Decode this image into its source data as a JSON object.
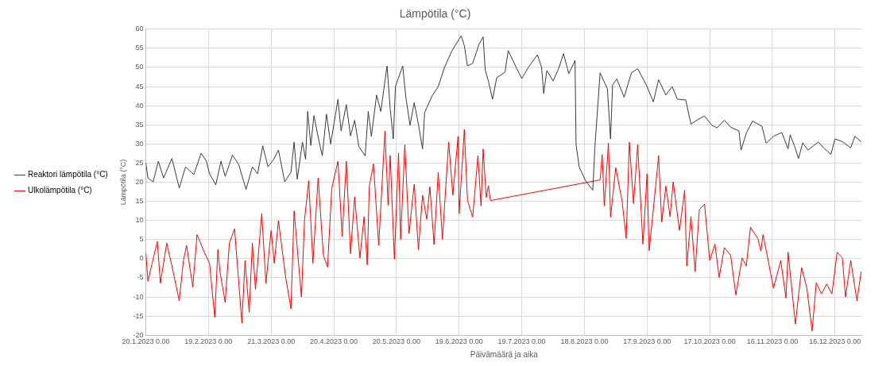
{
  "chart_data": {
    "type": "line",
    "title": "Lämpötila (°C)",
    "xlabel": "Päivämäärä ja aika",
    "ylabel": "Lämpötila (°C)",
    "xlim": [
      "2023-01-20",
      "2023-12-29"
    ],
    "xticks": [
      {
        "value": "2023-01-20",
        "label": "20.1.2023 0.00"
      },
      {
        "value": "2023-02-19",
        "label": "19.2.2023 0.00"
      },
      {
        "value": "2023-03-21",
        "label": "21.3.2023 0.00"
      },
      {
        "value": "2023-04-20",
        "label": "20.4.2023 0.00"
      },
      {
        "value": "2023-05-20",
        "label": "20.5.2023 0.00"
      },
      {
        "value": "2023-06-19",
        "label": "19.6.2023 0.00"
      },
      {
        "value": "2023-07-19",
        "label": "19.7.2023 0.00"
      },
      {
        "value": "2023-08-18",
        "label": "18.8.2023 0.00"
      },
      {
        "value": "2023-09-17",
        "label": "17.9.2023 0.00"
      },
      {
        "value": "2023-10-17",
        "label": "17.10.2023 0.00"
      },
      {
        "value": "2023-11-16",
        "label": "16.11.2023 0.00"
      },
      {
        "value": "2023-12-16",
        "label": "16.12.2023 0.00"
      }
    ],
    "ylim": [
      -20,
      60
    ],
    "yticks": [
      -20,
      -15,
      -10,
      -5,
      0,
      5,
      10,
      15,
      20,
      25,
      30,
      35,
      40,
      45,
      50,
      55,
      60
    ],
    "grid": true,
    "legend": "left",
    "marker": "none",
    "line_style": "solid",
    "series": [
      {
        "name": "Reaktori lämpötila (°C)",
        "color": "#3a3a3a",
        "x": [
          "2023-01-20",
          "2023-01-21",
          "2023-01-23T12:00",
          "2023-01-26",
          "2023-01-28T12:00",
          "2023-02-01T12:00",
          "2023-02-05",
          "2023-02-08",
          "2023-02-12",
          "2023-02-15T12:00",
          "2023-02-18",
          "2023-02-19T12:00",
          "2023-02-22T12:00",
          "2023-02-25",
          "2023-02-27",
          "2023-03-02T12:00",
          "2023-03-05T12:00",
          "2023-03-09",
          "2023-03-12",
          "2023-03-14T12:00",
          "2023-03-17",
          "2023-03-19T12:00",
          "2023-03-22",
          "2023-03-24T12:00",
          "2023-03-27T12:00",
          "2023-03-30T12:00",
          "2023-04-01",
          "2023-04-02T12:00",
          "2023-04-05",
          "2023-04-06T12:00",
          "2023-04-07T12:00",
          "2023-04-09",
          "2023-04-10T12:00",
          "2023-04-13",
          "2023-04-14T12:00",
          "2023-04-16T12:00",
          "2023-04-18T12:00",
          "2023-04-22",
          "2023-04-23T12:00",
          "2023-04-26",
          "2023-04-28",
          "2023-04-30",
          "2023-05-02",
          "2023-05-05",
          "2023-05-06T12:00",
          "2023-05-08",
          "2023-05-10T12:00",
          "2023-05-12T12:00",
          "2023-05-15T12:00",
          "2023-05-17",
          "2023-05-18T12:00",
          "2023-05-19T12:00",
          "2023-05-23",
          "2023-05-24T12:00",
          "2023-05-26T12:00",
          "2023-05-28T12:00",
          "2023-05-30T12:00",
          "2023-06-01T12:00",
          "2023-06-02T12:00",
          "2023-06-06",
          "2023-06-09",
          "2023-06-12",
          "2023-06-15T12:00",
          "2023-06-20",
          "2023-06-21T12:00",
          "2023-06-23",
          "2023-06-25T12:00",
          "2023-06-28T12:00",
          "2023-06-30T12:00",
          "2023-07-01T12:00",
          "2023-07-03",
          "2023-07-05",
          "2023-07-07",
          "2023-07-11",
          "2023-07-12T12:00",
          "2023-07-16",
          "2023-07-19",
          "2023-07-22T12:00",
          "2023-07-26T12:00",
          "2023-07-28T12:00",
          "2023-07-29T12:00",
          "2023-07-31",
          "2023-08-03",
          "2023-08-05T12:00",
          "2023-08-08",
          "2023-08-10T12:00",
          "2023-08-13T12:00",
          "2023-08-14",
          "2023-08-15T12:00",
          "2023-08-18T12:00",
          "2023-08-22",
          "2023-08-23",
          "2023-08-25T12:00",
          "2023-08-29",
          "2023-08-30T12:00",
          "2023-08-31T12:00",
          "2023-09-02T12:00",
          "2023-09-06",
          "2023-09-09T12:00",
          "2023-09-12T12:00",
          "2023-09-17",
          "2023-09-20",
          "2023-09-22T12:00",
          "2023-09-26",
          "2023-09-29",
          "2023-10-01T12:00",
          "2023-10-05T12:00",
          "2023-10-08",
          "2023-10-12",
          "2023-10-14T12:00",
          "2023-10-18",
          "2023-10-20T12:00",
          "2023-10-24",
          "2023-10-27",
          "2023-10-31",
          "2023-11-01",
          "2023-11-03T12:00",
          "2023-11-06T12:00",
          "2023-11-11",
          "2023-11-13",
          "2023-11-16T12:00",
          "2023-11-20T12:00",
          "2023-11-23T12:00",
          "2023-11-24T12:00",
          "2023-11-26T12:00",
          "2023-11-28T12:00",
          "2023-11-30T12:00",
          "2023-12-03",
          "2023-12-08",
          "2023-12-10T12:00",
          "2023-12-14",
          "2023-12-16",
          "2023-12-19T12:00",
          "2023-12-23T12:00",
          "2023-12-25T12:00",
          "2023-12-28T12:00"
        ],
        "values": [
          25.1,
          21.1,
          20.1,
          25.5,
          21.1,
          26.2,
          18.5,
          24.0,
          22.0,
          27.6,
          25.5,
          22.2,
          19.3,
          25.5,
          21.5,
          27.1,
          24.6,
          18.1,
          24.0,
          22.2,
          29.5,
          24.0,
          25.8,
          28.4,
          20.1,
          22.6,
          30.5,
          20.8,
          30.5,
          26.0,
          38.5,
          29.6,
          37.4,
          30.5,
          26.9,
          37.8,
          30.0,
          41.7,
          33.4,
          40.3,
          32.1,
          36.2,
          29.3,
          26.9,
          38.5,
          32.0,
          42.8,
          38.5,
          50.4,
          39.3,
          31.3,
          45.0,
          50.4,
          42.2,
          34.9,
          40.8,
          35.2,
          28.7,
          38.2,
          42.5,
          45.0,
          50.0,
          54.3,
          58.3,
          55.7,
          50.4,
          51.1,
          56.0,
          58.0,
          49.3,
          46.5,
          41.7,
          47.3,
          48.8,
          54.4,
          50.4,
          47.1,
          50.3,
          53.3,
          50.0,
          43.2,
          49.2,
          46.5,
          49.5,
          53.6,
          48.4,
          51.8,
          29.8,
          24.0,
          20.4,
          17.9,
          29.1,
          48.6,
          44.4,
          31.3,
          45.5,
          47.0,
          42.2,
          48.6,
          49.7,
          45.0,
          41.0,
          46.8,
          42.8,
          45.0,
          41.7,
          41.5,
          35.2,
          36.6,
          37.3,
          34.9,
          34.2,
          36.2,
          34.4,
          33.4,
          28.4,
          32.8,
          36.0,
          34.6,
          30.2,
          32.0,
          33.0,
          28.7,
          32.4,
          29.6,
          26.2,
          30.3,
          28.4,
          30.5,
          29.0,
          27.3,
          31.3,
          30.6,
          29.0,
          32.0,
          30.6
        ]
      },
      {
        "name": "Ulkolämpötila (°C)",
        "color": "#ff0000",
        "x": [
          "2023-01-20",
          "2023-01-21",
          "2023-01-23",
          "2023-01-25T12:00",
          "2023-01-27",
          "2023-01-30",
          "2023-02-01T12:00",
          "2023-02-05",
          "2023-02-07",
          "2023-02-08T12:00",
          "2023-02-11T12:00",
          "2023-02-13T12:00",
          "2023-02-17",
          "2023-02-19T12:00",
          "2023-02-22",
          "2023-02-23T12:00",
          "2023-02-24T12:00",
          "2023-02-27",
          "2023-03-01",
          "2023-03-03T12:00",
          "2023-03-07",
          "2023-03-08T12:00",
          "2023-03-10T12:00",
          "2023-03-12",
          "2023-03-13T12:00",
          "2023-03-16T12:00",
          "2023-03-18T12:00",
          "2023-03-21",
          "2023-03-22T12:00",
          "2023-03-24T12:00",
          "2023-03-28",
          "2023-03-30T12:00",
          "2023-04-01",
          "2023-04-04T12:00",
          "2023-04-06",
          "2023-04-08",
          "2023-04-10",
          "2023-04-12T12:00",
          "2023-04-15",
          "2023-04-17",
          "2023-04-19",
          "2023-04-22",
          "2023-04-24",
          "2023-04-26",
          "2023-04-28",
          "2023-04-30",
          "2023-05-02T12:00",
          "2023-05-04T12:00",
          "2023-05-06",
          "2023-05-07",
          "2023-05-09",
          "2023-05-11T12:00",
          "2023-05-14T12:00",
          "2023-05-16",
          "2023-05-17",
          "2023-05-19",
          "2023-05-21",
          "2023-05-22",
          "2023-05-24",
          "2023-05-26",
          "2023-05-28T12:00",
          "2023-05-30T12:00",
          "2023-06-01T12:00",
          "2023-06-03T12:00",
          "2023-06-05",
          "2023-06-07",
          "2023-06-09",
          "2023-06-11",
          "2023-06-14",
          "2023-06-16",
          "2023-06-18T12:00",
          "2023-06-19",
          "2023-06-21T12:00",
          "2023-06-23",
          "2023-06-25T12:00",
          "2023-06-28",
          "2023-06-29T12:00",
          "2023-06-30T12:00",
          "2023-07-02",
          "2023-07-03",
          "2023-07-04",
          "2023-08-25T12:00",
          "2023-08-26T12:00",
          "2023-08-27T12:00",
          "2023-08-29T12:00",
          "2023-08-30T12:00",
          "2023-09-02",
          "2023-09-05",
          "2023-09-07",
          "2023-09-08T12:00",
          "2023-09-10T12:00",
          "2023-09-12T12:00",
          "2023-09-15",
          "2023-09-17",
          "2023-09-18",
          "2023-09-21",
          "2023-09-22T12:00",
          "2023-09-24",
          "2023-09-26",
          "2023-09-28",
          "2023-09-29T12:00",
          "2023-10-02T12:00",
          "2023-10-05",
          "2023-10-06",
          "2023-10-08",
          "2023-10-10",
          "2023-10-12",
          "2023-10-14T12:00",
          "2023-10-17",
          "2023-10-19T12:00",
          "2023-10-21T12:00",
          "2023-10-24",
          "2023-10-27",
          "2023-10-29T12:00",
          "2023-11-01T12:00",
          "2023-11-03T12:00",
          "2023-11-05T12:00",
          "2023-11-09",
          "2023-11-10T12:00",
          "2023-11-11T12:00",
          "2023-11-14",
          "2023-11-16T12:00",
          "2023-11-20",
          "2023-11-22T12:00",
          "2023-11-23T12:00",
          "2023-11-27",
          "2023-11-28",
          "2023-11-30",
          "2023-12-02T12:00",
          "2023-12-05",
          "2023-12-07",
          "2023-12-09T12:00",
          "2023-12-12",
          "2023-12-14T12:00",
          "2023-12-17",
          "2023-12-19T12:00",
          "2023-12-21",
          "2023-12-23T12:00",
          "2023-12-26T12:00",
          "2023-12-28T12:00"
        ],
        "values": [
          1.7,
          -5.9,
          -1.2,
          4.5,
          -6.4,
          4.1,
          -1.9,
          -11.0,
          -0.5,
          3.5,
          -7.4,
          6.3,
          1.7,
          -1.2,
          -15.3,
          2.4,
          -3.4,
          -11.4,
          4.1,
          7.8,
          -16.8,
          -0.5,
          -14.0,
          4.1,
          -8.0,
          11.8,
          -6.4,
          7.4,
          -1.2,
          9.9,
          -5.0,
          -13.1,
          12.5,
          -10.0,
          10.3,
          20.4,
          -1.2,
          21.1,
          1.0,
          -2.2,
          18.3,
          25.5,
          5.8,
          25.5,
          1.3,
          16.2,
          0.2,
          11.0,
          -1.6,
          19.0,
          24.8,
          3.5,
          33.4,
          14.0,
          27.0,
          -0.1,
          27.6,
          5.1,
          29.8,
          6.6,
          19.5,
          2.4,
          16.6,
          10.3,
          18.8,
          3.7,
          22.6,
          5.1,
          30.5,
          16.6,
          32.0,
          11.8,
          33.8,
          15.2,
          10.9,
          26.9,
          13.8,
          28.7,
          16.0,
          19.0,
          15.2,
          20.6,
          27.2,
          13.8,
          30.2,
          10.9,
          23.8,
          15.2,
          5.3,
          30.5,
          14.4,
          29.8,
          3.8,
          22.2,
          2.1,
          18.4,
          26.9,
          9.6,
          19.0,
          11.0,
          20.1,
          7.4,
          17.9,
          -1.9,
          11.0,
          -3.4,
          12.8,
          14.3,
          -0.5,
          3.8,
          -4.9,
          2.9,
          0.9,
          -9.5,
          0.2,
          -1.9,
          8.2,
          5.3,
          2.0,
          6.3,
          -0.5,
          -7.7,
          -0.5,
          -10.3,
          1.7,
          -17.1,
          -12.1,
          -2.3,
          -7.7,
          -18.9,
          -6.3,
          -9.2,
          -6.6,
          -9.2,
          1.7,
          0.2,
          -10.0,
          -0.5,
          -11.0,
          -3.4
        ]
      }
    ]
  }
}
